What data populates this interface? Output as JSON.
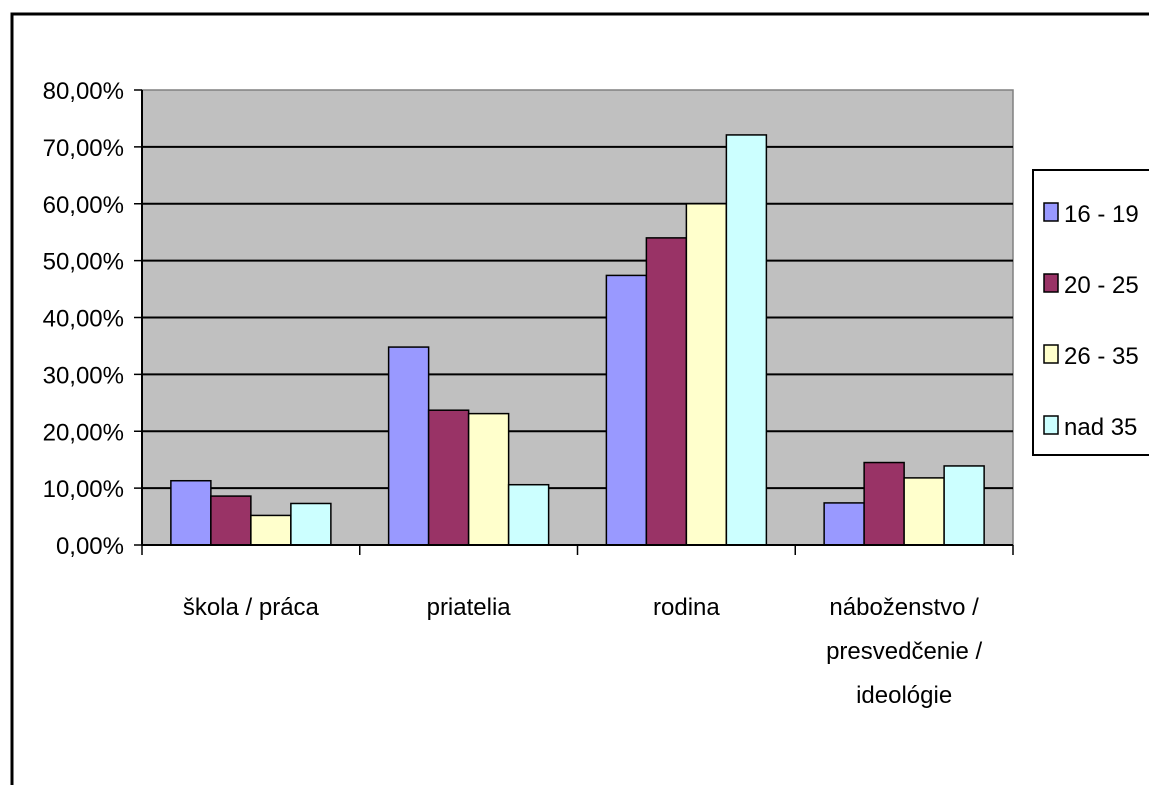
{
  "chart_data": {
    "type": "bar",
    "categories": [
      [
        "škola / práca"
      ],
      [
        "priatelia"
      ],
      [
        "rodina"
      ],
      [
        "náboženstvo /",
        "presvedčenie /",
        "ideológie"
      ]
    ],
    "series": [
      {
        "name": "16 - 19",
        "color": "#9999FF",
        "values": [
          11.3,
          34.8,
          47.4,
          7.4
        ]
      },
      {
        "name": "20 - 25",
        "color": "#993366",
        "values": [
          8.6,
          23.7,
          54.0,
          14.5
        ]
      },
      {
        "name": "26 - 35",
        "color": "#FFFFCC",
        "values": [
          5.2,
          23.1,
          60.0,
          11.8
        ]
      },
      {
        "name": "nad 35",
        "color": "#CCFFFF",
        "values": [
          7.3,
          10.6,
          72.1,
          13.9
        ]
      }
    ],
    "y_ticks": [
      "0,00%",
      "10,00%",
      "20,00%",
      "30,00%",
      "40,00%",
      "50,00%",
      "60,00%",
      "70,00%",
      "80,00%"
    ],
    "ylim": [
      0,
      80
    ],
    "grid": true,
    "plot_background": "#C0C0C0",
    "legend_position": "right"
  }
}
